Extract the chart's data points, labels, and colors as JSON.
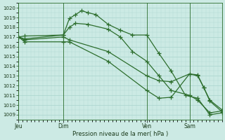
{
  "background_color": "#cceae4",
  "grid_color": "#a8d4cc",
  "line_color": "#2d6e2d",
  "marker_color": "#2d6e2d",
  "xlabel": "Pression niveau de la mer( hPa )",
  "ylim": [
    1008.5,
    1020.5
  ],
  "yticks": [
    1009,
    1010,
    1011,
    1012,
    1013,
    1014,
    1015,
    1016,
    1017,
    1018,
    1019,
    1020
  ],
  "day_labels": [
    "Jeu",
    "Dim",
    "Ven",
    "Sam"
  ],
  "day_positions": [
    0.0,
    0.22,
    0.63,
    0.84
  ],
  "xlim": [
    0,
    1.0
  ],
  "series1_x": [
    0.0,
    0.03,
    0.22,
    0.25,
    0.28,
    0.31,
    0.34,
    0.38,
    0.44,
    0.5,
    0.56,
    0.63,
    0.69,
    0.75,
    0.82,
    0.88,
    0.94,
    1.0
  ],
  "series1_y": [
    1017.0,
    1017.1,
    1017.2,
    1018.9,
    1019.3,
    1019.7,
    1019.5,
    1019.3,
    1018.3,
    1017.7,
    1017.2,
    1017.2,
    1015.3,
    1013.5,
    1011.0,
    1010.7,
    1009.0,
    1009.2
  ],
  "series2_x": [
    0.0,
    0.03,
    0.22,
    0.25,
    0.28,
    0.34,
    0.44,
    0.5,
    0.56,
    0.63,
    0.69,
    0.75,
    0.84,
    0.88,
    0.94,
    1.0
  ],
  "series2_y": [
    1017.0,
    1016.8,
    1017.2,
    1018.0,
    1018.4,
    1018.3,
    1017.8,
    1017.0,
    1015.5,
    1014.5,
    1013.0,
    1011.5,
    1011.0,
    1010.5,
    1009.2,
    1009.4
  ],
  "series3_x": [
    0.0,
    0.03,
    0.22,
    0.25,
    0.44,
    0.63,
    0.69,
    0.75,
    0.84,
    0.88,
    0.91,
    0.94,
    1.0
  ],
  "series3_y": [
    1017.0,
    1016.7,
    1017.0,
    1016.7,
    1015.5,
    1013.0,
    1012.5,
    1012.4,
    1013.2,
    1013.0,
    1011.8,
    1010.5,
    1009.5
  ],
  "series4_x": [
    0.0,
    0.03,
    0.22,
    0.25,
    0.44,
    0.63,
    0.69,
    0.75,
    0.84,
    0.88,
    0.91,
    0.94,
    1.0
  ],
  "series4_y": [
    1017.0,
    1016.5,
    1016.5,
    1016.5,
    1014.5,
    1011.5,
    1010.7,
    1010.8,
    1013.2,
    1013.1,
    1011.8,
    1010.4,
    1009.3
  ]
}
